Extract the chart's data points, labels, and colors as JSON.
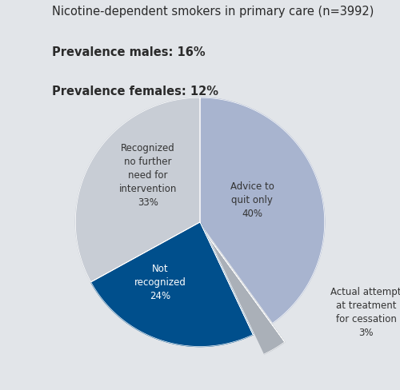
{
  "title": "Nicotine-dependent smokers in primary care (n=3992)",
  "subtitle_line1": "Prevalence males: 16%",
  "subtitle_line2": "Prevalence females: 12%",
  "slices": [
    {
      "label": "Advice to\nquit only\n40%",
      "value": 40,
      "color": "#a8b4cf",
      "explode": 0.0,
      "label_color": "#333333"
    },
    {
      "label": "Actual attempt\nat treatment\nfor cessation\n3%",
      "value": 3,
      "color": "#aab0b8",
      "explode": 0.18,
      "label_color": "#333333"
    },
    {
      "label": "Not\nrecognized\n24%",
      "value": 24,
      "color": "#004f8c",
      "explode": 0.0,
      "label_color": "#ffffff"
    },
    {
      "label": "Recognized\nno further\nneed for\nintervention\n33%",
      "value": 33,
      "color": "#c8cdd5",
      "explode": 0.0,
      "label_color": "#333333"
    }
  ],
  "background_color": "#e2e5e9",
  "text_color": "#2a2a2a",
  "title_fontsize": 10.5,
  "subtitle_fontsize": 10.5,
  "label_fontsize": 8.5,
  "start_angle": 90
}
